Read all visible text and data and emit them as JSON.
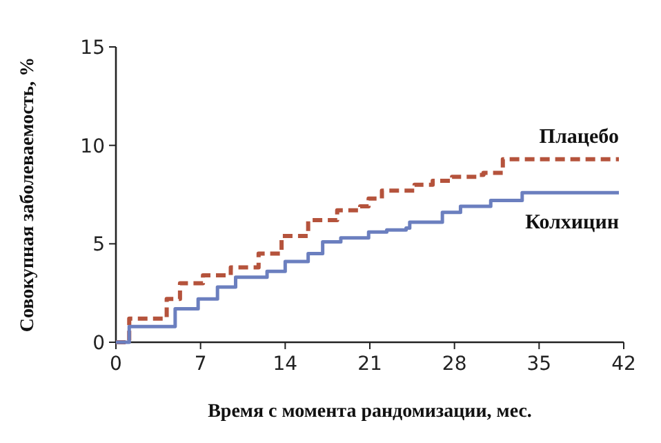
{
  "chart_data": {
    "type": "step",
    "xlabel": "Время с момента рандомизации, мес.",
    "ylabel": "Совокупная заболеваемость, %",
    "xlim": [
      0,
      42
    ],
    "xticks": [
      0,
      7,
      14,
      21,
      28,
      35,
      42
    ],
    "ylim": [
      0,
      15
    ],
    "yticks": [
      0,
      5,
      10,
      15
    ],
    "grid": false,
    "legend": false,
    "series": [
      {
        "name": "Плацебо",
        "color": "#b5533c",
        "line_style": "dashed",
        "x": [
          0,
          1.1,
          4.2,
          5.3,
          7.2,
          9.5,
          11.8,
          13.7,
          15.9,
          18.3,
          20.2,
          20.9,
          22,
          24.7,
          26.2,
          27.8,
          30,
          30.4,
          31.6,
          32,
          41.6
        ],
        "values": [
          0,
          1.2,
          2.2,
          3.0,
          3.4,
          3.8,
          4.5,
          5.4,
          6.2,
          6.7,
          6.9,
          7.3,
          7.7,
          8.0,
          8.2,
          8.4,
          8.5,
          8.6,
          8.6,
          9.3,
          9.3
        ]
      },
      {
        "name": "Колхицин",
        "color": "#6b7fbf",
        "line_style": "solid",
        "x": [
          0,
          1.1,
          4.9,
          6.8,
          8.4,
          9.9,
          12.5,
          14,
          15.9,
          17.1,
          18.6,
          20.9,
          22.4,
          24,
          24.3,
          26.2,
          27,
          28.5,
          30.8,
          31,
          33.5,
          33.6,
          41.6
        ],
        "values": [
          0,
          0.8,
          1.7,
          2.2,
          2.8,
          3.3,
          3.6,
          4.1,
          4.5,
          5.1,
          5.3,
          5.6,
          5.7,
          5.8,
          6.1,
          6.1,
          6.6,
          6.9,
          6.9,
          7.2,
          7.2,
          7.6,
          7.6
        ]
      }
    ]
  }
}
